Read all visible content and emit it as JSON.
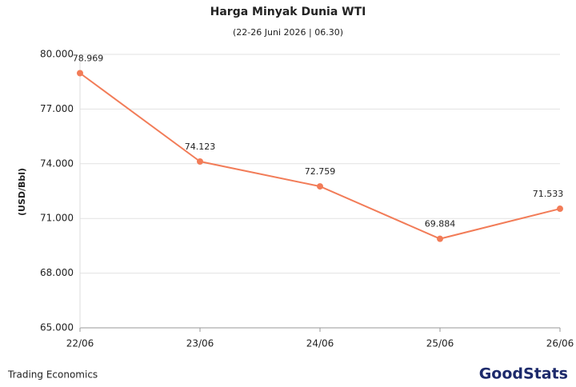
{
  "chart_data": {
    "type": "line",
    "title": "Harga Minyak Dunia WTI",
    "subtitle": "(22-26 Juni 2026 | 06.30)",
    "y_label": "(USD/Bbl)",
    "categories": [
      "22/06",
      "23/06",
      "24/06",
      "25/06",
      "26/06"
    ],
    "series": [
      {
        "name": "WTI",
        "color": "#f27c58",
        "values": [
          78.969,
          74.123,
          72.759,
          69.884,
          71.533
        ]
      }
    ],
    "ylim": [
      65,
      80
    ],
    "yticks": [
      {
        "value": 65,
        "label": "65.000"
      },
      {
        "value": 68,
        "label": "68.000"
      },
      {
        "value": 71,
        "label": "71.000"
      },
      {
        "value": 74,
        "label": "74.000"
      },
      {
        "value": 77,
        "label": "77.000"
      },
      {
        "value": 80,
        "label": "80.000"
      }
    ],
    "grid": true,
    "source": "Trading Economics",
    "logo": "GoodStats"
  }
}
